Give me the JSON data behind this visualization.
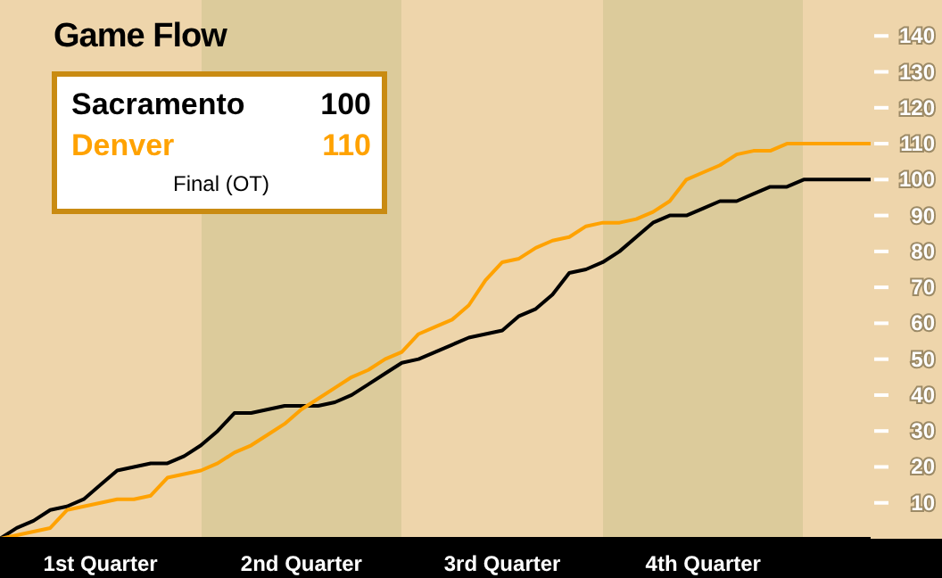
{
  "chart_data": {
    "type": "line",
    "title": "Game Flow",
    "marker": "none",
    "line_style": "solid",
    "grid": false,
    "annotations": [
      "100",
      "110",
      "Final (OT)"
    ],
    "categories": [
      null,
      null,
      null,
      null,
      null,
      null,
      "1st Quarter",
      null,
      null,
      null,
      null,
      null,
      null,
      null,
      null,
      null,
      null,
      null,
      "2nd Quarter",
      null,
      null,
      null,
      null,
      null,
      null,
      null,
      null,
      null,
      null,
      null,
      "3rd Quarter",
      null,
      null,
      null,
      null,
      null,
      null,
      null,
      null,
      null,
      null,
      null,
      "4th Quarter",
      null,
      null,
      null,
      null,
      null,
      null,
      null,
      null,
      null,
      null
    ],
    "ylim": [
      0,
      150
    ],
    "yticks": [
      10,
      20,
      30,
      40,
      50,
      60,
      70,
      80,
      90,
      100,
      110,
      120,
      130,
      140
    ],
    "series": [
      {
        "name": "Sacramento",
        "color": "#000000",
        "values": [
          0,
          3,
          5,
          8,
          9,
          11,
          15,
          19,
          20,
          21,
          21,
          23,
          26,
          30,
          35,
          35,
          36,
          37,
          37,
          37,
          38,
          40,
          43,
          46,
          49,
          50,
          52,
          54,
          56,
          57,
          58,
          62,
          64,
          68,
          74,
          75,
          77,
          80,
          84,
          88,
          90,
          90,
          92,
          94,
          94,
          96,
          98,
          98,
          100,
          100,
          100,
          100,
          100
        ]
      },
      {
        "name": "Denver",
        "color": "#ffa200",
        "values": [
          0,
          1,
          2,
          3,
          8,
          9,
          10,
          11,
          11,
          12,
          17,
          18,
          19,
          21,
          24,
          26,
          29,
          32,
          36,
          39,
          42,
          45,
          47,
          50,
          52,
          57,
          59,
          61,
          65,
          72,
          77,
          78,
          81,
          83,
          84,
          87,
          88,
          88,
          89,
          91,
          94,
          100,
          102,
          104,
          107,
          108,
          108,
          110,
          110,
          110,
          110,
          110,
          110
        ]
      }
    ]
  }
}
